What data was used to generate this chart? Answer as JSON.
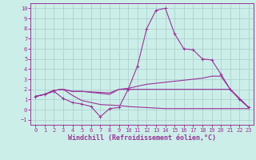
{
  "xlabel": "Windchill (Refroidissement éolien,°C)",
  "background_color": "#cceee8",
  "grid_color": "#aacccc",
  "line_color": "#993399",
  "xlim": [
    -0.5,
    23.5
  ],
  "ylim": [
    -1.5,
    10.5
  ],
  "xticks": [
    0,
    1,
    2,
    3,
    4,
    5,
    6,
    7,
    8,
    9,
    10,
    11,
    12,
    13,
    14,
    15,
    16,
    17,
    18,
    19,
    20,
    21,
    22,
    23
  ],
  "yticks": [
    -1,
    0,
    1,
    2,
    3,
    4,
    5,
    6,
    7,
    8,
    9,
    10
  ],
  "line_spike": {
    "x": [
      0,
      1,
      2,
      3,
      4,
      5,
      6,
      7,
      8,
      9,
      10,
      11,
      12,
      13,
      14,
      15,
      16,
      17,
      18,
      19,
      20,
      21,
      22,
      23
    ],
    "y": [
      1.3,
      1.5,
      1.8,
      1.1,
      0.7,
      0.55,
      0.3,
      -0.7,
      0.1,
      0.2,
      2.0,
      4.3,
      8.0,
      9.8,
      10.0,
      7.5,
      6.0,
      5.9,
      5.0,
      4.9,
      3.5,
      2.0,
      1.0,
      0.2
    ]
  },
  "line_upper": {
    "x": [
      0,
      1,
      2,
      3,
      4,
      5,
      6,
      7,
      8,
      9,
      10,
      11,
      12,
      13,
      14,
      15,
      16,
      17,
      18,
      19,
      20,
      21,
      22,
      23
    ],
    "y": [
      1.3,
      1.5,
      1.9,
      2.0,
      1.8,
      1.8,
      1.7,
      1.6,
      1.5,
      2.0,
      2.1,
      2.3,
      2.5,
      2.6,
      2.7,
      2.8,
      2.9,
      3.0,
      3.1,
      3.3,
      3.3,
      2.0,
      1.1,
      0.2
    ]
  },
  "line_lower": {
    "x": [
      0,
      1,
      2,
      3,
      4,
      5,
      6,
      7,
      8,
      9,
      10,
      11,
      12,
      13,
      14,
      15,
      16,
      17,
      18,
      19,
      20,
      21,
      22,
      23
    ],
    "y": [
      1.3,
      1.5,
      1.9,
      2.0,
      1.4,
      0.9,
      0.7,
      0.5,
      0.45,
      0.4,
      0.3,
      0.25,
      0.2,
      0.15,
      0.1,
      0.1,
      0.1,
      0.1,
      0.1,
      0.1,
      0.1,
      0.1,
      0.1,
      0.1
    ]
  },
  "line_mid": {
    "x": [
      0,
      1,
      2,
      3,
      4,
      5,
      6,
      7,
      8,
      9,
      10,
      11,
      12,
      13,
      14,
      15,
      16,
      17,
      18,
      19,
      20,
      21,
      22,
      23
    ],
    "y": [
      1.3,
      1.5,
      1.9,
      2.0,
      1.8,
      1.8,
      1.75,
      1.7,
      1.65,
      2.0,
      2.0,
      2.0,
      2.0,
      2.0,
      2.0,
      2.0,
      2.0,
      2.0,
      2.0,
      2.0,
      2.0,
      2.0,
      1.1,
      0.2
    ]
  },
  "xlabel_fontsize": 6,
  "tick_fontsize": 5,
  "linewidth": 0.8,
  "marker_size": 3
}
